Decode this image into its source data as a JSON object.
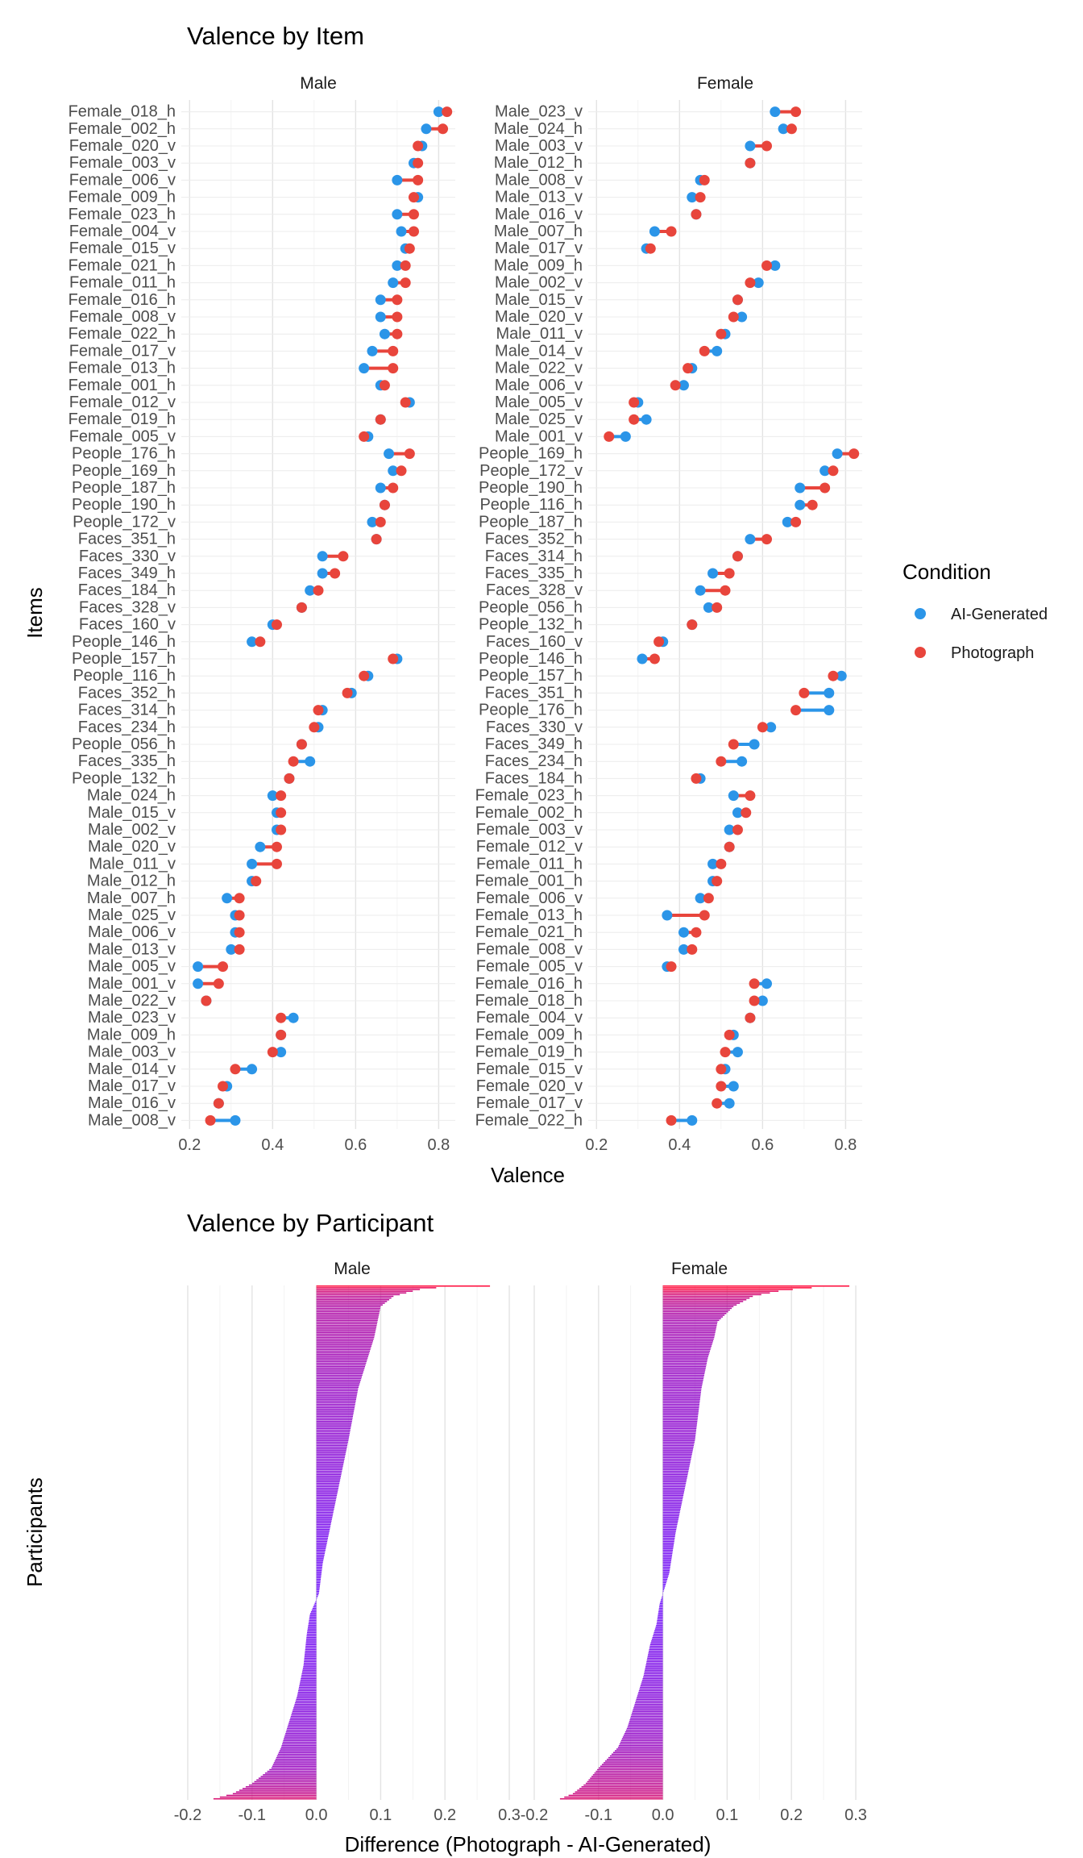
{
  "chart_data": [
    {
      "type": "dumbbell",
      "title": "Valence by Item",
      "xlabel": "Valence",
      "ylabel": "Items",
      "xlim": [
        0.18,
        0.84
      ],
      "xticks": [
        0.2,
        0.4,
        0.6,
        0.8
      ],
      "xtick_labels": [
        "0.2",
        "0.4",
        "0.6",
        "0.8"
      ],
      "grid": true,
      "legend": {
        "title": "Condition",
        "position": "right",
        "entries": [
          {
            "name": "AI-Generated",
            "color": "#2b95e8"
          },
          {
            "name": "Photograph",
            "color": "#e8453c"
          }
        ]
      },
      "panels": [
        {
          "label": "Male",
          "items": [
            {
              "name": "Female_018_h",
              "ai": 0.8,
              "photo": 0.82
            },
            {
              "name": "Female_002_h",
              "ai": 0.77,
              "photo": 0.81
            },
            {
              "name": "Female_020_v",
              "ai": 0.76,
              "photo": 0.75
            },
            {
              "name": "Female_003_v",
              "ai": 0.74,
              "photo": 0.75
            },
            {
              "name": "Female_006_v",
              "ai": 0.7,
              "photo": 0.75
            },
            {
              "name": "Female_009_h",
              "ai": 0.75,
              "photo": 0.74
            },
            {
              "name": "Female_023_h",
              "ai": 0.7,
              "photo": 0.74
            },
            {
              "name": "Female_004_v",
              "ai": 0.71,
              "photo": 0.74
            },
            {
              "name": "Female_015_v",
              "ai": 0.72,
              "photo": 0.73
            },
            {
              "name": "Female_021_h",
              "ai": 0.7,
              "photo": 0.72
            },
            {
              "name": "Female_011_h",
              "ai": 0.69,
              "photo": 0.72
            },
            {
              "name": "Female_016_h",
              "ai": 0.66,
              "photo": 0.7
            },
            {
              "name": "Female_008_v",
              "ai": 0.66,
              "photo": 0.7
            },
            {
              "name": "Female_022_h",
              "ai": 0.67,
              "photo": 0.7
            },
            {
              "name": "Female_017_v",
              "ai": 0.64,
              "photo": 0.69
            },
            {
              "name": "Female_013_h",
              "ai": 0.62,
              "photo": 0.69
            },
            {
              "name": "Female_001_h",
              "ai": 0.66,
              "photo": 0.67
            },
            {
              "name": "Female_012_v",
              "ai": 0.73,
              "photo": 0.72
            },
            {
              "name": "Female_019_h",
              "ai": 0.66,
              "photo": 0.66
            },
            {
              "name": "Female_005_v",
              "ai": 0.63,
              "photo": 0.62
            },
            {
              "name": "People_176_h",
              "ai": 0.68,
              "photo": 0.73
            },
            {
              "name": "People_169_h",
              "ai": 0.69,
              "photo": 0.71
            },
            {
              "name": "People_187_h",
              "ai": 0.66,
              "photo": 0.69
            },
            {
              "name": "People_190_h",
              "ai": 0.67,
              "photo": 0.67
            },
            {
              "name": "People_172_v",
              "ai": 0.64,
              "photo": 0.66
            },
            {
              "name": "Faces_351_h",
              "ai": 0.65,
              "photo": 0.65
            },
            {
              "name": "Faces_330_v",
              "ai": 0.52,
              "photo": 0.57
            },
            {
              "name": "Faces_349_h",
              "ai": 0.52,
              "photo": 0.55
            },
            {
              "name": "Faces_184_h",
              "ai": 0.49,
              "photo": 0.51
            },
            {
              "name": "Faces_328_v",
              "ai": 0.47,
              "photo": 0.47
            },
            {
              "name": "Faces_160_v",
              "ai": 0.4,
              "photo": 0.41
            },
            {
              "name": "People_146_h",
              "ai": 0.35,
              "photo": 0.37
            },
            {
              "name": "People_157_h",
              "ai": 0.7,
              "photo": 0.69
            },
            {
              "name": "People_116_h",
              "ai": 0.63,
              "photo": 0.62
            },
            {
              "name": "Faces_352_h",
              "ai": 0.59,
              "photo": 0.58
            },
            {
              "name": "Faces_314_h",
              "ai": 0.52,
              "photo": 0.51
            },
            {
              "name": "Faces_234_h",
              "ai": 0.51,
              "photo": 0.5
            },
            {
              "name": "People_056_h",
              "ai": 0.47,
              "photo": 0.47
            },
            {
              "name": "Faces_335_h",
              "ai": 0.49,
              "photo": 0.45
            },
            {
              "name": "People_132_h",
              "ai": 0.44,
              "photo": 0.44
            },
            {
              "name": "Male_024_h",
              "ai": 0.4,
              "photo": 0.42
            },
            {
              "name": "Male_015_v",
              "ai": 0.41,
              "photo": 0.42
            },
            {
              "name": "Male_002_v",
              "ai": 0.41,
              "photo": 0.42
            },
            {
              "name": "Male_020_v",
              "ai": 0.37,
              "photo": 0.41
            },
            {
              "name": "Male_011_v",
              "ai": 0.35,
              "photo": 0.41
            },
            {
              "name": "Male_012_h",
              "ai": 0.35,
              "photo": 0.36
            },
            {
              "name": "Male_007_h",
              "ai": 0.29,
              "photo": 0.32
            },
            {
              "name": "Male_025_v",
              "ai": 0.31,
              "photo": 0.32
            },
            {
              "name": "Male_006_v",
              "ai": 0.31,
              "photo": 0.32
            },
            {
              "name": "Male_013_v",
              "ai": 0.3,
              "photo": 0.32
            },
            {
              "name": "Male_005_v",
              "ai": 0.22,
              "photo": 0.28
            },
            {
              "name": "Male_001_v",
              "ai": 0.22,
              "photo": 0.27
            },
            {
              "name": "Male_022_v",
              "ai": 0.24,
              "photo": 0.24
            },
            {
              "name": "Male_023_v",
              "ai": 0.45,
              "photo": 0.42
            },
            {
              "name": "Male_009_h",
              "ai": 0.42,
              "photo": 0.42
            },
            {
              "name": "Male_003_v",
              "ai": 0.42,
              "photo": 0.4
            },
            {
              "name": "Male_014_v",
              "ai": 0.35,
              "photo": 0.31
            },
            {
              "name": "Male_017_v",
              "ai": 0.29,
              "photo": 0.28
            },
            {
              "name": "Male_016_v",
              "ai": 0.27,
              "photo": 0.27
            },
            {
              "name": "Male_008_v",
              "ai": 0.31,
              "photo": 0.25
            }
          ]
        },
        {
          "label": "Female",
          "items": [
            {
              "name": "Male_023_v",
              "ai": 0.63,
              "photo": 0.68
            },
            {
              "name": "Male_024_h",
              "ai": 0.65,
              "photo": 0.67
            },
            {
              "name": "Male_003_v",
              "ai": 0.57,
              "photo": 0.61
            },
            {
              "name": "Male_012_h",
              "ai": 0.57,
              "photo": 0.57
            },
            {
              "name": "Male_008_v",
              "ai": 0.45,
              "photo": 0.46
            },
            {
              "name": "Male_013_v",
              "ai": 0.43,
              "photo": 0.45
            },
            {
              "name": "Male_016_v",
              "ai": 0.44,
              "photo": 0.44
            },
            {
              "name": "Male_007_h",
              "ai": 0.34,
              "photo": 0.38
            },
            {
              "name": "Male_017_v",
              "ai": 0.32,
              "photo": 0.33
            },
            {
              "name": "Male_009_h",
              "ai": 0.63,
              "photo": 0.61
            },
            {
              "name": "Male_002_v",
              "ai": 0.59,
              "photo": 0.57
            },
            {
              "name": "Male_015_v",
              "ai": 0.54,
              "photo": 0.54
            },
            {
              "name": "Male_020_v",
              "ai": 0.55,
              "photo": 0.53
            },
            {
              "name": "Male_011_v",
              "ai": 0.51,
              "photo": 0.5
            },
            {
              "name": "Male_014_v",
              "ai": 0.49,
              "photo": 0.46
            },
            {
              "name": "Male_022_v",
              "ai": 0.43,
              "photo": 0.42
            },
            {
              "name": "Male_006_v",
              "ai": 0.41,
              "photo": 0.39
            },
            {
              "name": "Male_005_v",
              "ai": 0.3,
              "photo": 0.29
            },
            {
              "name": "Male_025_v",
              "ai": 0.32,
              "photo": 0.29
            },
            {
              "name": "Male_001_v",
              "ai": 0.27,
              "photo": 0.23
            },
            {
              "name": "People_169_h",
              "ai": 0.78,
              "photo": 0.82
            },
            {
              "name": "People_172_v",
              "ai": 0.75,
              "photo": 0.77
            },
            {
              "name": "People_190_h",
              "ai": 0.69,
              "photo": 0.75
            },
            {
              "name": "People_116_h",
              "ai": 0.69,
              "photo": 0.72
            },
            {
              "name": "People_187_h",
              "ai": 0.66,
              "photo": 0.68
            },
            {
              "name": "Faces_352_h",
              "ai": 0.57,
              "photo": 0.61
            },
            {
              "name": "Faces_314_h",
              "ai": 0.54,
              "photo": 0.54
            },
            {
              "name": "Faces_335_h",
              "ai": 0.48,
              "photo": 0.52
            },
            {
              "name": "Faces_328_v",
              "ai": 0.45,
              "photo": 0.51
            },
            {
              "name": "People_056_h",
              "ai": 0.47,
              "photo": 0.49
            },
            {
              "name": "People_132_h",
              "ai": 0.43,
              "photo": 0.43
            },
            {
              "name": "Faces_160_v",
              "ai": 0.36,
              "photo": 0.35
            },
            {
              "name": "People_146_h",
              "ai": 0.31,
              "photo": 0.34
            },
            {
              "name": "People_157_h",
              "ai": 0.79,
              "photo": 0.77
            },
            {
              "name": "Faces_351_h",
              "ai": 0.76,
              "photo": 0.7
            },
            {
              "name": "People_176_h",
              "ai": 0.76,
              "photo": 0.68
            },
            {
              "name": "Faces_330_v",
              "ai": 0.62,
              "photo": 0.6
            },
            {
              "name": "Faces_349_h",
              "ai": 0.58,
              "photo": 0.53
            },
            {
              "name": "Faces_234_h",
              "ai": 0.55,
              "photo": 0.5
            },
            {
              "name": "Faces_184_h",
              "ai": 0.45,
              "photo": 0.44
            },
            {
              "name": "Female_023_h",
              "ai": 0.53,
              "photo": 0.57
            },
            {
              "name": "Female_002_h",
              "ai": 0.54,
              "photo": 0.56
            },
            {
              "name": "Female_003_v",
              "ai": 0.52,
              "photo": 0.54
            },
            {
              "name": "Female_012_v",
              "ai": 0.52,
              "photo": 0.52
            },
            {
              "name": "Female_011_h",
              "ai": 0.48,
              "photo": 0.5
            },
            {
              "name": "Female_001_h",
              "ai": 0.48,
              "photo": 0.49
            },
            {
              "name": "Female_006_v",
              "ai": 0.45,
              "photo": 0.47
            },
            {
              "name": "Female_013_h",
              "ai": 0.37,
              "photo": 0.46
            },
            {
              "name": "Female_021_h",
              "ai": 0.41,
              "photo": 0.44
            },
            {
              "name": "Female_008_v",
              "ai": 0.41,
              "photo": 0.43
            },
            {
              "name": "Female_005_v",
              "ai": 0.37,
              "photo": 0.38
            },
            {
              "name": "Female_016_h",
              "ai": 0.61,
              "photo": 0.58
            },
            {
              "name": "Female_018_h",
              "ai": 0.6,
              "photo": 0.58
            },
            {
              "name": "Female_004_v",
              "ai": 0.57,
              "photo": 0.57
            },
            {
              "name": "Female_009_h",
              "ai": 0.53,
              "photo": 0.52
            },
            {
              "name": "Female_019_h",
              "ai": 0.54,
              "photo": 0.51
            },
            {
              "name": "Female_015_v",
              "ai": 0.51,
              "photo": 0.5
            },
            {
              "name": "Female_020_v",
              "ai": 0.53,
              "photo": 0.5
            },
            {
              "name": "Female_017_v",
              "ai": 0.52,
              "photo": 0.49
            },
            {
              "name": "Female_022_h",
              "ai": 0.43,
              "photo": 0.38
            }
          ]
        }
      ]
    },
    {
      "type": "bar",
      "orientation": "horizontal",
      "title": "Valence by Participant",
      "xlabel": "Difference (Photograph - AI-Generated)",
      "ylabel": "Participants",
      "xlim": [
        -0.21,
        0.31
      ],
      "xticks": [
        -0.2,
        -0.1,
        0.0,
        0.1,
        0.2,
        0.3
      ],
      "xtick_labels": [
        "-0.2",
        "-0.1",
        "0.0",
        "0.1",
        "0.2",
        "0.3"
      ],
      "grid": true,
      "color_scale": {
        "low": "#6a0dff",
        "high": "#ff0c3c"
      },
      "panels": [
        {
          "label": "Male",
          "n": 300,
          "values_sorted_desc": [
            [
              0,
              0.27
            ],
            [
              0.004,
              0.17
            ],
            [
              0.01,
              0.15
            ],
            [
              0.02,
              0.12
            ],
            [
              0.04,
              0.1
            ],
            [
              0.07,
              0.095
            ],
            [
              0.1,
              0.09
            ],
            [
              0.14,
              0.08
            ],
            [
              0.2,
              0.065
            ],
            [
              0.3,
              0.05
            ],
            [
              0.36,
              0.04
            ],
            [
              0.42,
              0.03
            ],
            [
              0.48,
              0.02
            ],
            [
              0.54,
              0.01
            ],
            [
              0.6,
              0.004
            ],
            [
              0.64,
              -0.01
            ],
            [
              0.68,
              -0.015
            ],
            [
              0.74,
              -0.02
            ],
            [
              0.8,
              -0.03
            ],
            [
              0.84,
              -0.04
            ],
            [
              0.9,
              -0.055
            ],
            [
              0.94,
              -0.07
            ],
            [
              0.97,
              -0.1
            ],
            [
              0.99,
              -0.13
            ],
            [
              1,
              -0.16
            ]
          ]
        },
        {
          "label": "Female",
          "n": 300,
          "values_sorted_desc": [
            [
              0,
              0.29
            ],
            [
              0.004,
              0.22
            ],
            [
              0.01,
              0.18
            ],
            [
              0.02,
              0.14
            ],
            [
              0.04,
              0.11
            ],
            [
              0.07,
              0.085
            ],
            [
              0.1,
              0.08
            ],
            [
              0.14,
              0.07
            ],
            [
              0.2,
              0.06
            ],
            [
              0.3,
              0.05
            ],
            [
              0.36,
              0.04
            ],
            [
              0.42,
              0.03
            ],
            [
              0.48,
              0.02
            ],
            [
              0.56,
              0.01
            ],
            [
              0.62,
              -0.005
            ],
            [
              0.66,
              -0.01
            ],
            [
              0.7,
              -0.02
            ],
            [
              0.76,
              -0.03
            ],
            [
              0.8,
              -0.04
            ],
            [
              0.86,
              -0.055
            ],
            [
              0.9,
              -0.07
            ],
            [
              0.94,
              -0.1
            ],
            [
              0.97,
              -0.12
            ],
            [
              0.99,
              -0.14
            ],
            [
              1,
              -0.16
            ]
          ]
        }
      ]
    }
  ]
}
